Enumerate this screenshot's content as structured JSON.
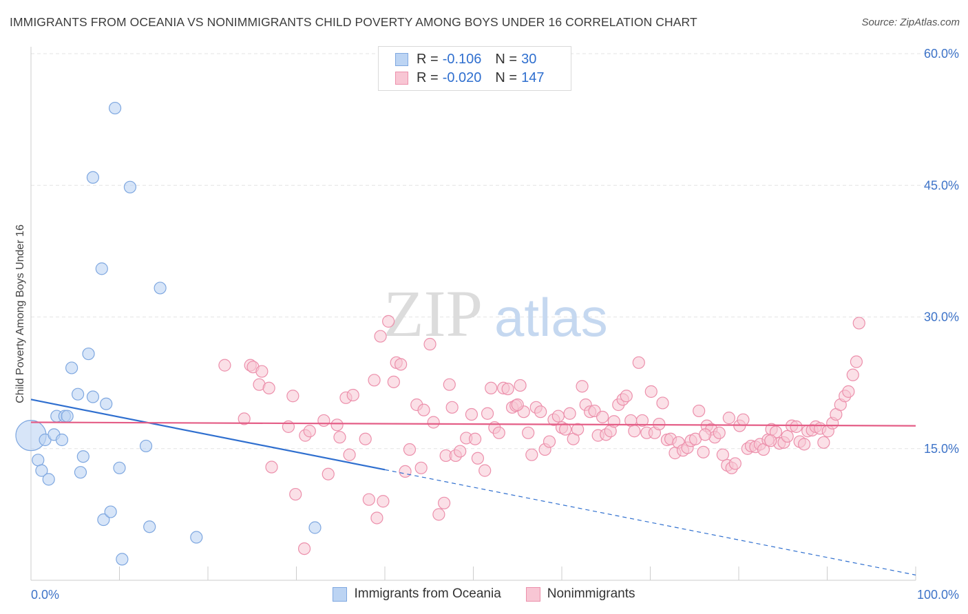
{
  "header": {
    "title": "IMMIGRANTS FROM OCEANIA VS NONIMMIGRANTS CHILD POVERTY AMONG BOYS UNDER 16 CORRELATION CHART",
    "source": "Source: ZipAtlas.com"
  },
  "legend": {
    "series1": {
      "r_label": "R =",
      "r_value": "-0.106",
      "n_label": "N =",
      "n_value": "30"
    },
    "series2": {
      "r_label": "R =",
      "r_value": "-0.020",
      "n_label": "N =",
      "n_value": "147"
    }
  },
  "bottom_legend": {
    "series1": "Immigrants from Oceania",
    "series2": "Nonimmigrants"
  },
  "colors": {
    "blue_fill": "#bcd4f3",
    "blue_stroke": "#7ea7e0",
    "blue_line": "#2f6fcf",
    "pink_fill": "#f8c6d4",
    "pink_stroke": "#ec8fab",
    "pink_line": "#e45d86",
    "axis_text": "#3d73c8",
    "grid": "#e3e3e3"
  },
  "chart_data": {
    "type": "scatter",
    "title": "IMMIGRANTS FROM OCEANIA VS NONIMMIGRANTS CHILD POVERTY AMONG BOYS UNDER 16 CORRELATION CHART",
    "xlabel": "",
    "ylabel": "Child Poverty Among Boys Under 16",
    "xlim": [
      0,
      100
    ],
    "ylim": [
      0,
      62
    ],
    "x_tick_labels": [
      "0.0%",
      "100.0%"
    ],
    "y_ticks": [
      15,
      30,
      45,
      60
    ],
    "y_tick_labels": [
      "15.0%",
      "30.0%",
      "45.0%",
      "60.0%"
    ],
    "watermark": {
      "zip": "ZIP",
      "atlas": "atlas"
    },
    "series": [
      {
        "name": "Immigrants from Oceania",
        "color": "#7ea7e0",
        "points": [
          [
            0.0,
            16.5
          ],
          [
            0.8,
            13.7
          ],
          [
            1.2,
            12.5
          ],
          [
            1.6,
            16.0
          ],
          [
            2.0,
            11.5
          ],
          [
            2.6,
            16.6
          ],
          [
            2.9,
            18.7
          ],
          [
            3.5,
            16.0
          ],
          [
            3.8,
            18.7
          ],
          [
            4.1,
            18.7
          ],
          [
            4.6,
            24.2
          ],
          [
            5.3,
            21.2
          ],
          [
            5.6,
            12.3
          ],
          [
            5.9,
            14.1
          ],
          [
            6.5,
            25.8
          ],
          [
            7.0,
            20.9
          ],
          [
            8.0,
            35.5
          ],
          [
            8.2,
            6.9
          ],
          [
            8.5,
            20.1
          ],
          [
            9.0,
            7.8
          ],
          [
            7.0,
            45.9
          ],
          [
            9.5,
            53.8
          ],
          [
            10.0,
            12.8
          ],
          [
            10.3,
            2.4
          ],
          [
            11.2,
            44.8
          ],
          [
            13.0,
            15.3
          ],
          [
            13.4,
            6.1
          ],
          [
            14.6,
            33.3
          ],
          [
            18.7,
            4.9
          ],
          [
            32.1,
            6.0
          ]
        ]
      },
      {
        "name": "Nonimmigrants",
        "color": "#ec8fab",
        "points": [
          [
            21.9,
            24.5
          ],
          [
            24.1,
            18.4
          ],
          [
            24.8,
            24.5
          ],
          [
            25.1,
            24.3
          ],
          [
            25.8,
            22.3
          ],
          [
            26.1,
            23.8
          ],
          [
            26.9,
            21.9
          ],
          [
            27.2,
            12.9
          ],
          [
            29.1,
            17.5
          ],
          [
            29.6,
            21.0
          ],
          [
            29.9,
            9.8
          ],
          [
            30.9,
            3.6
          ],
          [
            31.0,
            16.5
          ],
          [
            31.5,
            17.0
          ],
          [
            33.1,
            18.2
          ],
          [
            33.6,
            12.1
          ],
          [
            34.6,
            17.7
          ],
          [
            34.9,
            16.3
          ],
          [
            35.6,
            20.8
          ],
          [
            36.0,
            14.3
          ],
          [
            36.4,
            21.1
          ],
          [
            37.8,
            16.1
          ],
          [
            38.2,
            9.2
          ],
          [
            38.8,
            22.8
          ],
          [
            39.1,
            7.1
          ],
          [
            39.5,
            27.8
          ],
          [
            39.8,
            9.0
          ],
          [
            40.4,
            29.5
          ],
          [
            41.0,
            22.6
          ],
          [
            41.3,
            24.8
          ],
          [
            41.8,
            24.6
          ],
          [
            42.3,
            12.4
          ],
          [
            42.8,
            14.9
          ],
          [
            43.6,
            20.0
          ],
          [
            44.1,
            12.8
          ],
          [
            44.4,
            19.4
          ],
          [
            45.1,
            26.9
          ],
          [
            45.5,
            18.0
          ],
          [
            46.1,
            7.5
          ],
          [
            46.7,
            8.8
          ],
          [
            46.9,
            14.2
          ],
          [
            47.3,
            22.3
          ],
          [
            47.6,
            19.7
          ],
          [
            48.0,
            14.2
          ],
          [
            48.5,
            14.7
          ],
          [
            49.2,
            16.2
          ],
          [
            49.8,
            18.9
          ],
          [
            50.2,
            16.1
          ],
          [
            50.5,
            13.9
          ],
          [
            51.3,
            12.5
          ],
          [
            51.6,
            19.0
          ],
          [
            52.0,
            21.9
          ],
          [
            52.4,
            17.4
          ],
          [
            52.9,
            16.8
          ],
          [
            53.4,
            21.9
          ],
          [
            53.9,
            21.8
          ],
          [
            54.4,
            19.7
          ],
          [
            54.8,
            19.9
          ],
          [
            55.3,
            22.2
          ],
          [
            55.7,
            19.2
          ],
          [
            56.2,
            16.8
          ],
          [
            56.6,
            14.3
          ],
          [
            57.1,
            19.7
          ],
          [
            57.6,
            19.2
          ],
          [
            58.1,
            14.9
          ],
          [
            58.6,
            15.8
          ],
          [
            59.1,
            18.3
          ],
          [
            59.6,
            18.7
          ],
          [
            60.0,
            17.4
          ],
          [
            60.4,
            17.2
          ],
          [
            60.9,
            19.0
          ],
          [
            61.3,
            16.1
          ],
          [
            61.8,
            17.2
          ],
          [
            62.3,
            22.1
          ],
          [
            62.7,
            20.0
          ],
          [
            63.2,
            19.2
          ],
          [
            63.7,
            19.3
          ],
          [
            64.1,
            16.5
          ],
          [
            64.6,
            18.6
          ],
          [
            65.0,
            16.6
          ],
          [
            65.5,
            17.0
          ],
          [
            65.9,
            18.1
          ],
          [
            66.4,
            20.0
          ],
          [
            66.9,
            20.6
          ],
          [
            67.3,
            21.0
          ],
          [
            67.8,
            18.2
          ],
          [
            68.2,
            17.0
          ],
          [
            68.7,
            24.8
          ],
          [
            69.1,
            18.2
          ],
          [
            69.6,
            16.8
          ],
          [
            70.1,
            21.5
          ],
          [
            70.5,
            16.8
          ],
          [
            71.0,
            17.8
          ],
          [
            71.4,
            20.2
          ],
          [
            71.9,
            16.0
          ],
          [
            72.3,
            16.1
          ],
          [
            72.8,
            14.5
          ],
          [
            73.2,
            15.7
          ],
          [
            73.7,
            14.8
          ],
          [
            74.2,
            15.1
          ],
          [
            74.6,
            15.9
          ],
          [
            75.1,
            16.1
          ],
          [
            75.5,
            19.3
          ],
          [
            76.0,
            14.6
          ],
          [
            76.4,
            17.6
          ],
          [
            76.9,
            17.2
          ],
          [
            77.3,
            16.3
          ],
          [
            77.8,
            16.8
          ],
          [
            78.2,
            14.3
          ],
          [
            78.7,
            13.1
          ],
          [
            79.2,
            12.8
          ],
          [
            79.6,
            13.3
          ],
          [
            80.1,
            17.6
          ],
          [
            80.5,
            18.3
          ],
          [
            81.0,
            15.0
          ],
          [
            81.4,
            15.3
          ],
          [
            81.9,
            15.2
          ],
          [
            82.4,
            15.5
          ],
          [
            82.8,
            14.9
          ],
          [
            83.3,
            16.0
          ],
          [
            83.7,
            17.2
          ],
          [
            84.2,
            16.9
          ],
          [
            84.6,
            15.6
          ],
          [
            85.1,
            15.7
          ],
          [
            85.5,
            16.4
          ],
          [
            86.0,
            17.6
          ],
          [
            86.5,
            17.5
          ],
          [
            86.9,
            15.8
          ],
          [
            87.4,
            15.5
          ],
          [
            87.8,
            17.0
          ],
          [
            88.3,
            17.1
          ],
          [
            88.7,
            17.5
          ],
          [
            89.2,
            17.3
          ],
          [
            89.6,
            15.7
          ],
          [
            90.1,
            17.0
          ],
          [
            90.6,
            17.9
          ],
          [
            91.0,
            18.9
          ],
          [
            91.5,
            20.0
          ],
          [
            92.0,
            21.0
          ],
          [
            92.4,
            21.5
          ],
          [
            92.9,
            23.4
          ],
          [
            93.3,
            24.9
          ],
          [
            93.6,
            29.3
          ],
          [
            83.6,
            15.9
          ],
          [
            78.9,
            18.5
          ],
          [
            76.2,
            16.6
          ],
          [
            55.0,
            20.0
          ]
        ]
      }
    ],
    "trend_lines": [
      {
        "series": "Immigrants from Oceania",
        "x_start": 0,
        "y_start": 20.6,
        "x_solid_end": 40,
        "x_end": 100,
        "y_end": 0.6
      },
      {
        "series": "Nonimmigrants",
        "x_start": 0,
        "y_start": 18.0,
        "x_end": 100,
        "y_end": 17.6
      }
    ],
    "grid": true,
    "legend_position": "top-center"
  }
}
